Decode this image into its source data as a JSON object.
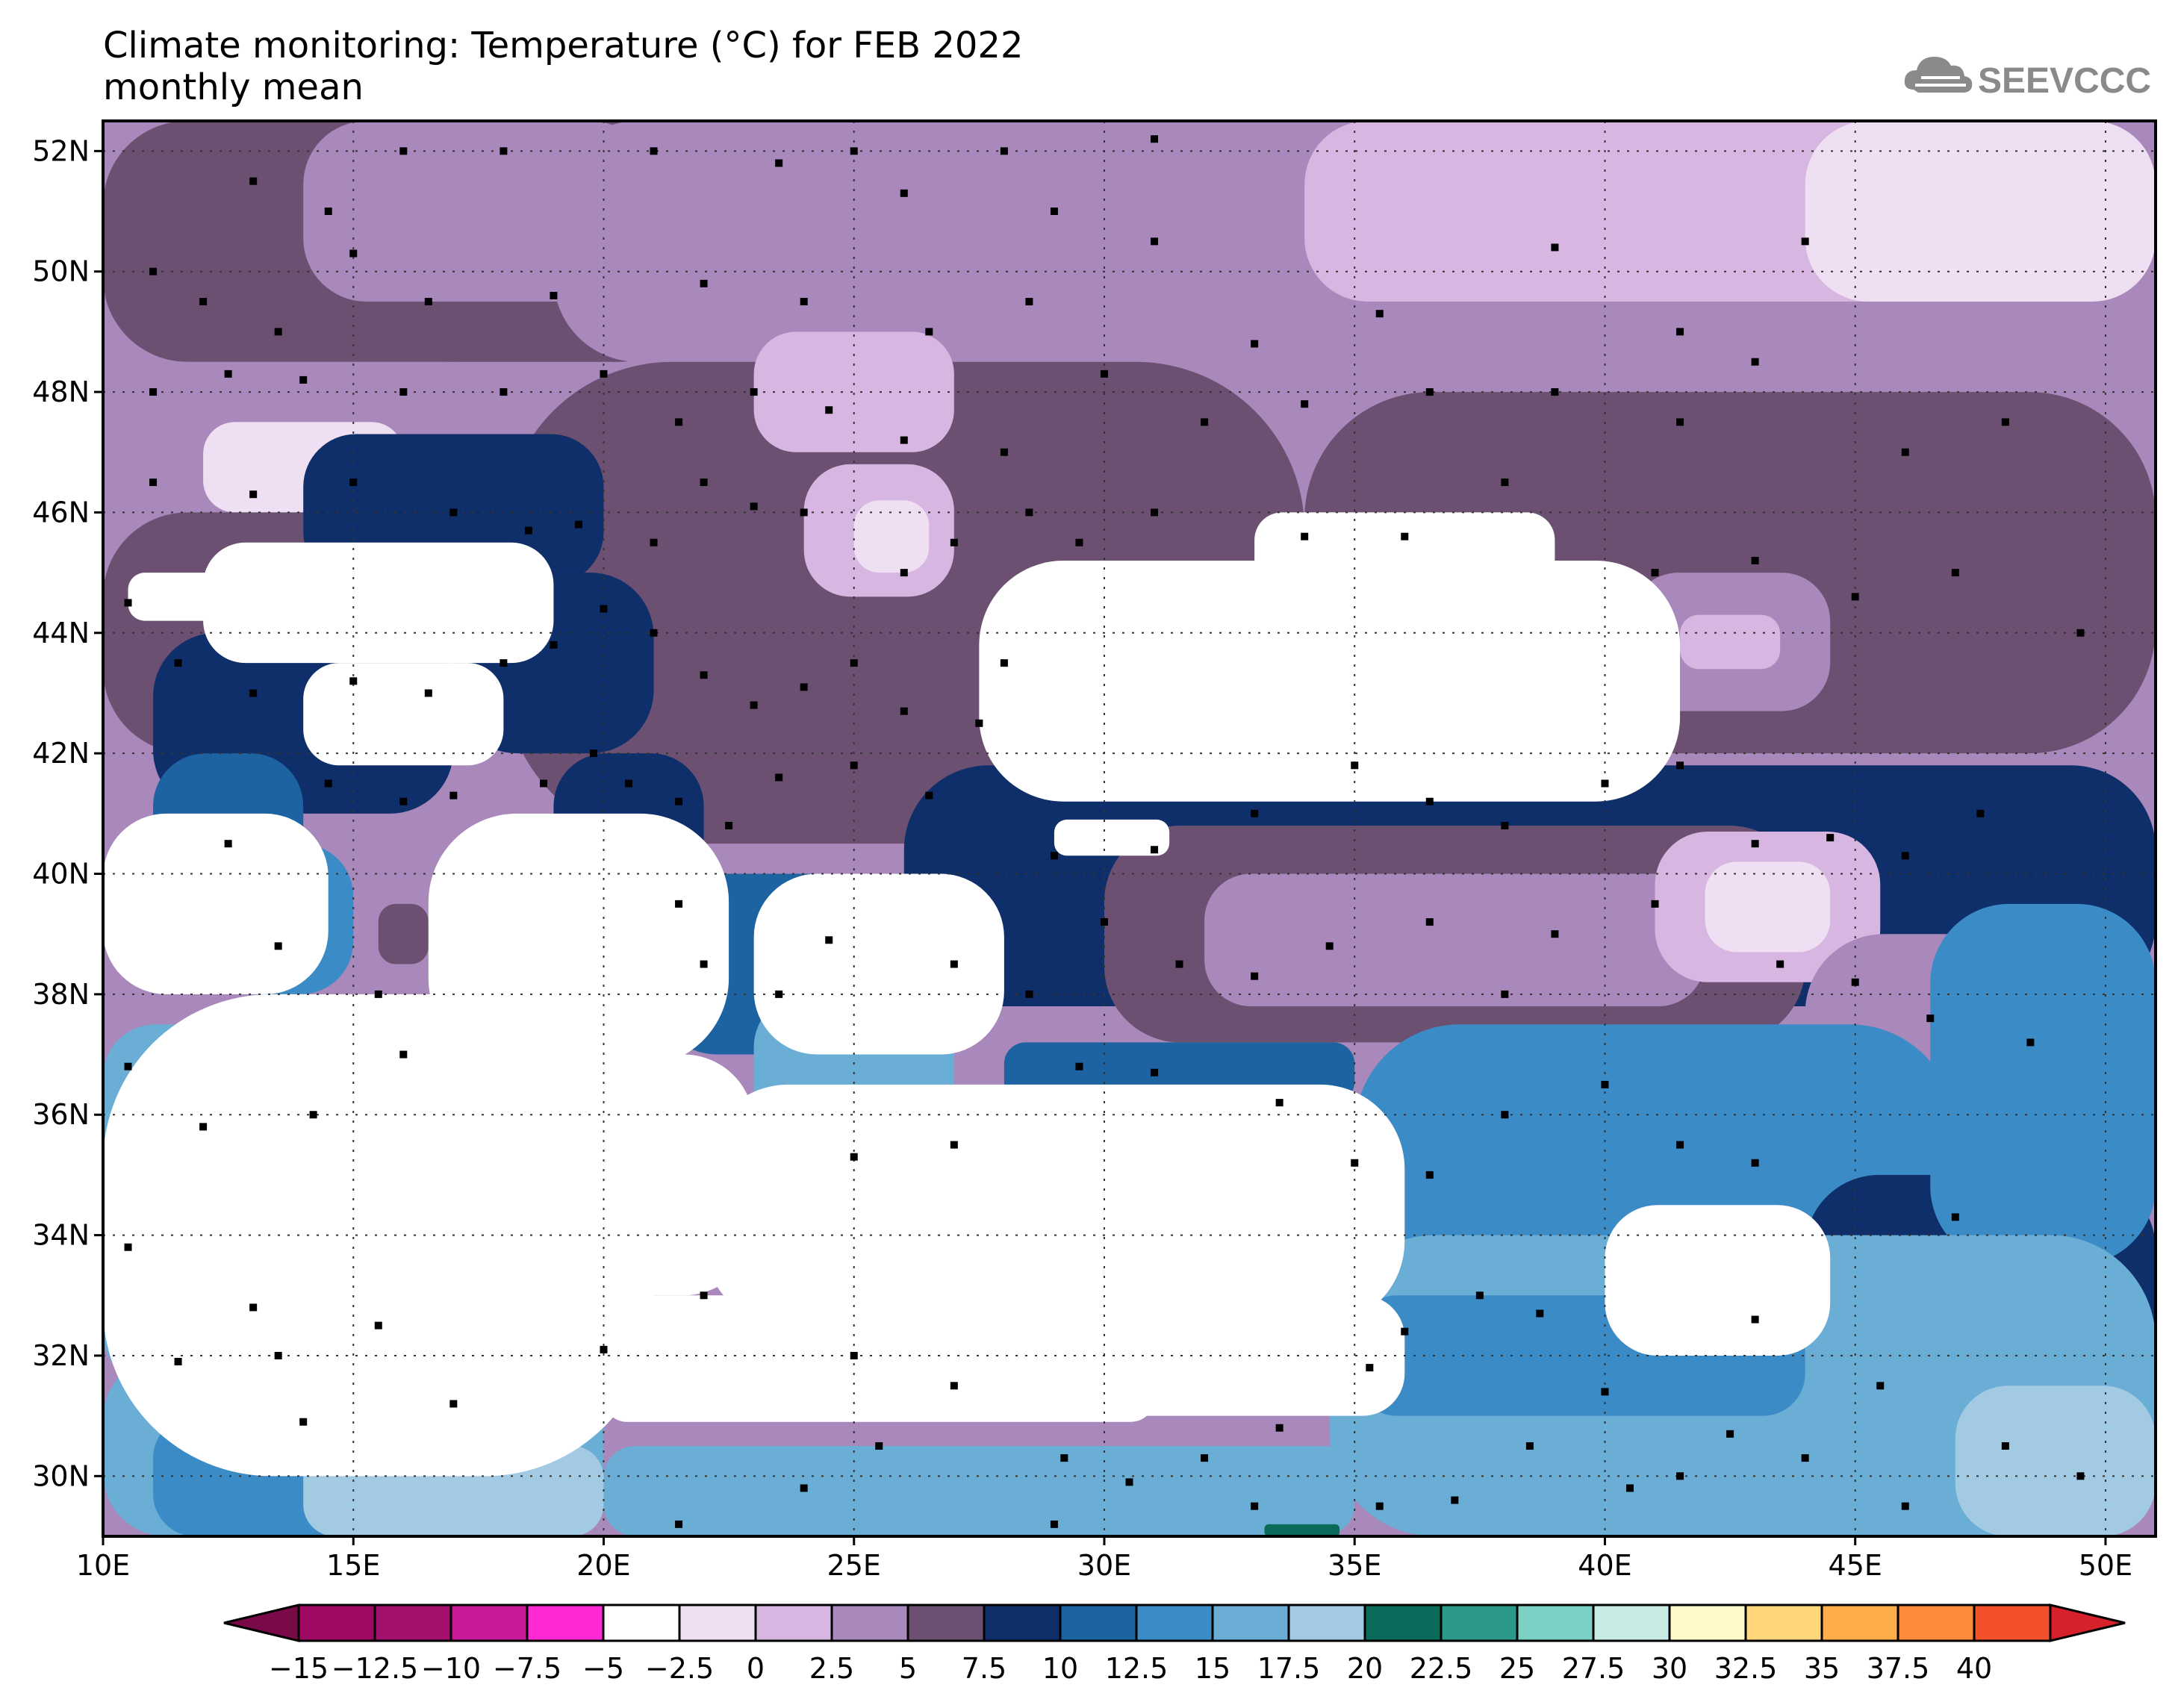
{
  "title": {
    "line1": "Climate monitoring: Temperature (°C) for FEB 2022",
    "line2": "monthly mean"
  },
  "logo": {
    "text": "SEEVCCC",
    "icon": "cloud-icon"
  },
  "map": {
    "lat_labels": [
      "52N",
      "50N",
      "48N",
      "46N",
      "44N",
      "42N",
      "40N",
      "38N",
      "36N",
      "34N",
      "32N",
      "30N"
    ],
    "lon_labels": [
      "10E",
      "15E",
      "20E",
      "25E",
      "30E",
      "35E",
      "40E",
      "45E",
      "50E"
    ],
    "lat_range": [
      29,
      52.5
    ],
    "lon_range": [
      10,
      51
    ],
    "grid": true
  },
  "colorbar": {
    "labels": [
      "−15",
      "−12.5",
      "−10",
      "−7.5",
      "−5",
      "−2.5",
      "0",
      "2.5",
      "5",
      "7.5",
      "10",
      "12.5",
      "15",
      "17.5",
      "20",
      "22.5",
      "25",
      "27.5",
      "30",
      "32.5",
      "35",
      "37.5",
      "40"
    ],
    "colors": [
      "#9e0a63",
      "#a3106d",
      "#c61a9a",
      "#ff2ad4",
      "#ffffff",
      "#efdff2",
      "#d8b6e2",
      "#a988bb",
      "#6b5072",
      "#0f2f6b",
      "#1d62a1",
      "#3b8cc6",
      "#6aaed6",
      "#a2cae3",
      "#0a6b5a",
      "#2c9a8a",
      "#7ad0c3",
      "#c6ece3",
      "#fffbc8",
      "#ffd67a",
      "#fdae4a",
      "#fb8a3a",
      "#f3502c"
    ],
    "under_color": "#7a0a47",
    "over_color": "#d6202a"
  },
  "land_blocks": [
    {
      "lon": 10,
      "lat": 52.5,
      "w": 12,
      "h": 4,
      "color": "#6b5072"
    },
    {
      "lon": 14,
      "lat": 52.5,
      "w": 7,
      "h": 3,
      "color": "#a988bb"
    },
    {
      "lon": 19,
      "lat": 52.5,
      "w": 18,
      "h": 4,
      "color": "#a988bb"
    },
    {
      "lon": 34,
      "lat": 52.5,
      "w": 17,
      "h": 3,
      "color": "#d8b6e2"
    },
    {
      "lon": 44,
      "lat": 52.5,
      "w": 7,
      "h": 3,
      "color": "#efdff2"
    },
    {
      "lon": 26,
      "lat": 49,
      "w": 25,
      "h": 2,
      "color": "#a988bb"
    },
    {
      "lon": 10,
      "lat": 48.5,
      "w": 8,
      "h": 3,
      "color": "#a988bb"
    },
    {
      "lon": 12,
      "lat": 47.5,
      "w": 4,
      "h": 1.5,
      "color": "#efdff2"
    },
    {
      "lon": 18,
      "lat": 48.5,
      "w": 16,
      "h": 8,
      "color": "#6b5072"
    },
    {
      "lon": 23,
      "lat": 49,
      "w": 4,
      "h": 2,
      "color": "#d8b6e2"
    },
    {
      "lon": 24,
      "lat": 46.8,
      "w": 3,
      "h": 2.2,
      "color": "#d8b6e2"
    },
    {
      "lon": 25,
      "lat": 46.2,
      "w": 1.5,
      "h": 1.2,
      "color": "#efdff2"
    },
    {
      "lon": 34,
      "lat": 48,
      "w": 17,
      "h": 6,
      "color": "#6b5072"
    },
    {
      "lon": 40.5,
      "lat": 45,
      "w": 4,
      "h": 2.3,
      "color": "#a988bb"
    },
    {
      "lon": 41.5,
      "lat": 44.3,
      "w": 2,
      "h": 0.9,
      "color": "#d8b6e2"
    },
    {
      "lon": 10,
      "lat": 46,
      "w": 8,
      "h": 4,
      "color": "#6b5072"
    },
    {
      "lon": 14,
      "lat": 47.3,
      "w": 6,
      "h": 2.5,
      "color": "#0f2f6b"
    },
    {
      "lon": 17,
      "lat": 45,
      "w": 4,
      "h": 3,
      "color": "#0f2f6b"
    },
    {
      "lon": 28,
      "lat": 44.5,
      "w": 3.5,
      "h": 4.5,
      "color": "#0f2f6b"
    },
    {
      "lon": 21,
      "lat": 44,
      "w": 7,
      "h": 3,
      "color": "#6b5072"
    },
    {
      "lon": 11,
      "lat": 44,
      "w": 6,
      "h": 3,
      "color": "#0f2f6b"
    },
    {
      "lon": 11,
      "lat": 42,
      "w": 3,
      "h": 3.5,
      "color": "#1d62a1"
    },
    {
      "lon": 12,
      "lat": 40.5,
      "w": 3,
      "h": 2.5,
      "color": "#3b8cc6"
    },
    {
      "lon": 15.5,
      "lat": 39.5,
      "w": 1,
      "h": 1,
      "color": "#6b5072"
    },
    {
      "lon": 19,
      "lat": 42,
      "w": 3,
      "h": 3,
      "color": "#0f2f6b"
    },
    {
      "lon": 21,
      "lat": 40,
      "w": 5,
      "h": 3,
      "color": "#1d62a1"
    },
    {
      "lon": 23,
      "lat": 38,
      "w": 4,
      "h": 2.5,
      "color": "#6aaed6"
    },
    {
      "lon": 26,
      "lat": 41.8,
      "w": 25,
      "h": 4,
      "color": "#0f2f6b"
    },
    {
      "lon": 30,
      "lat": 40.8,
      "w": 14,
      "h": 3.6,
      "color": "#6b5072"
    },
    {
      "lon": 32,
      "lat": 40,
      "w": 10,
      "h": 2.2,
      "color": "#a988bb"
    },
    {
      "lon": 41,
      "lat": 40.7,
      "w": 4.5,
      "h": 2.5,
      "color": "#d8b6e2"
    },
    {
      "lon": 42,
      "lat": 40.2,
      "w": 2.5,
      "h": 1.5,
      "color": "#efdff2"
    },
    {
      "lon": 44,
      "lat": 39,
      "w": 4.5,
      "h": 4,
      "color": "#a988bb"
    },
    {
      "lon": 28,
      "lat": 37.2,
      "w": 7,
      "h": 1,
      "color": "#1d62a1"
    },
    {
      "lon": 35,
      "lat": 37.5,
      "w": 12,
      "h": 5,
      "color": "#3b8cc6"
    },
    {
      "lon": 44,
      "lat": 35,
      "w": 7,
      "h": 3.5,
      "color": "#0f2f6b"
    },
    {
      "lon": 46.5,
      "lat": 39.5,
      "w": 4.5,
      "h": 6,
      "color": "#3b8cc6"
    },
    {
      "lon": 10,
      "lat": 37.5,
      "w": 3,
      "h": 6,
      "color": "#6aaed6"
    },
    {
      "lon": 10,
      "lat": 32,
      "w": 10,
      "h": 3,
      "color": "#6aaed6"
    },
    {
      "lon": 11,
      "lat": 31,
      "w": 4,
      "h": 2,
      "color": "#3b8cc6"
    },
    {
      "lon": 20,
      "lat": 30.5,
      "w": 15,
      "h": 1.5,
      "color": "#6aaed6"
    },
    {
      "lon": 34.5,
      "lat": 34,
      "w": 16.5,
      "h": 5,
      "color": "#6aaed6"
    },
    {
      "lon": 35,
      "lat": 33,
      "w": 9,
      "h": 2,
      "color": "#3b8cc6"
    },
    {
      "lon": 40,
      "lat": 34.5,
      "w": 4.5,
      "h": 2.5,
      "color": "#ffffff"
    },
    {
      "lon": 14,
      "lat": 30.5,
      "w": 6,
      "h": 1.5,
      "color": "#a2cae3"
    },
    {
      "lon": 47,
      "lat": 31.5,
      "w": 4,
      "h": 2.5,
      "color": "#a2cae3"
    },
    {
      "lon": 33.2,
      "lat": 29.2,
      "w": 1.5,
      "h": 0.3,
      "color": "#0a6b5a"
    }
  ],
  "sea_blocks": [
    {
      "lon": 27.5,
      "lat": 45.2,
      "w": 14,
      "h": 4,
      "color": "#ffffff"
    },
    {
      "lon": 33,
      "lat": 46,
      "w": 6,
      "h": 1.3,
      "color": "#ffffff"
    },
    {
      "lon": 10.5,
      "lat": 45,
      "w": 2,
      "h": 0.8,
      "color": "#ffffff"
    },
    {
      "lon": 12,
      "lat": 45.5,
      "w": 7,
      "h": 2,
      "color": "#ffffff"
    },
    {
      "lon": 14,
      "lat": 43.5,
      "w": 4,
      "h": 1.7,
      "color": "#ffffff"
    },
    {
      "lon": 10,
      "lat": 41,
      "w": 4.5,
      "h": 3,
      "color": "#ffffff"
    },
    {
      "lon": 16.5,
      "lat": 41,
      "w": 6,
      "h": 4.2,
      "color": "#ffffff"
    },
    {
      "lon": 10,
      "lat": 38,
      "w": 11,
      "h": 8,
      "color": "#ffffff"
    },
    {
      "lon": 19,
      "lat": 37,
      "w": 4,
      "h": 4,
      "color": "#ffffff"
    },
    {
      "lon": 23,
      "lat": 40,
      "w": 5,
      "h": 3,
      "color": "#ffffff"
    },
    {
      "lon": 22,
      "lat": 36.5,
      "w": 14,
      "h": 4,
      "color": "#ffffff"
    },
    {
      "lon": 18,
      "lat": 33,
      "w": 18,
      "h": 2,
      "color": "#ffffff"
    },
    {
      "lon": 15,
      "lat": 34,
      "w": 5,
      "h": 1.7,
      "color": "#ffffff"
    },
    {
      "lon": 20,
      "lat": 32,
      "w": 11,
      "h": 1.1,
      "color": "#ffffff"
    },
    {
      "lon": 29,
      "lat": 40.9,
      "w": 2.3,
      "h": 0.6,
      "color": "#ffffff"
    }
  ],
  "stations": [
    [
      12.5,
      52.5
    ],
    [
      13,
      51.5
    ],
    [
      14.5,
      51
    ],
    [
      16,
      52
    ],
    [
      18,
      52
    ],
    [
      21,
      52
    ],
    [
      23.5,
      51.8
    ],
    [
      25,
      52
    ],
    [
      26,
      51.3
    ],
    [
      28,
      52
    ],
    [
      29,
      51
    ],
    [
      31,
      52.2
    ],
    [
      11,
      50
    ],
    [
      12,
      49.5
    ],
    [
      13.5,
      49
    ],
    [
      15,
      50.3
    ],
    [
      16.5,
      49.5
    ],
    [
      19,
      49.6
    ],
    [
      22,
      49.8
    ],
    [
      24,
      49.5
    ],
    [
      26.5,
      49
    ],
    [
      28.5,
      49.5
    ],
    [
      31,
      50.5
    ],
    [
      33,
      48.8
    ],
    [
      35.5,
      49.3
    ],
    [
      39,
      50.4
    ],
    [
      41.5,
      49
    ],
    [
      44,
      50.5
    ],
    [
      11,
      48
    ],
    [
      12.5,
      48.3
    ],
    [
      14,
      48.2
    ],
    [
      16,
      48
    ],
    [
      18,
      48
    ],
    [
      20,
      48.3
    ],
    [
      21.5,
      47.5
    ],
    [
      23,
      48
    ],
    [
      24.5,
      47.7
    ],
    [
      26,
      47.2
    ],
    [
      28,
      47
    ],
    [
      30,
      48.3
    ],
    [
      32,
      47.5
    ],
    [
      34,
      47.8
    ],
    [
      36.5,
      48
    ],
    [
      39,
      48
    ],
    [
      41.5,
      47.5
    ],
    [
      43,
      48.5
    ],
    [
      46,
      47
    ],
    [
      48,
      47.5
    ],
    [
      11,
      46.5
    ],
    [
      13,
      46.3
    ],
    [
      15,
      46.5
    ],
    [
      17,
      46
    ],
    [
      18.5,
      45.7
    ],
    [
      19.5,
      45.8
    ],
    [
      21,
      45.5
    ],
    [
      22,
      46.5
    ],
    [
      23,
      46.1
    ],
    [
      24,
      46
    ],
    [
      26,
      45
    ],
    [
      27,
      45.5
    ],
    [
      28.5,
      46
    ],
    [
      29.5,
      45.5
    ],
    [
      31,
      46
    ],
    [
      34,
      45.6
    ],
    [
      36,
      45.6
    ],
    [
      38,
      46.5
    ],
    [
      41,
      45
    ],
    [
      43,
      45.2
    ],
    [
      45,
      44.6
    ],
    [
      47,
      45
    ],
    [
      49.5,
      44
    ],
    [
      10.5,
      44.5
    ],
    [
      11.5,
      43.5
    ],
    [
      13,
      43
    ],
    [
      15,
      43.2
    ],
    [
      16.5,
      43
    ],
    [
      18,
      43.5
    ],
    [
      19,
      43.8
    ],
    [
      20,
      44.4
    ],
    [
      21,
      44
    ],
    [
      22,
      43.3
    ],
    [
      23,
      42.8
    ],
    [
      24,
      43.1
    ],
    [
      25,
      43.5
    ],
    [
      26,
      42.7
    ],
    [
      27.5,
      42.5
    ],
    [
      28,
      43.5
    ],
    [
      14.5,
      41.5
    ],
    [
      16,
      41.2
    ],
    [
      17,
      41.3
    ],
    [
      18.8,
      41.5
    ],
    [
      19.8,
      42
    ],
    [
      20.5,
      41.5
    ],
    [
      21.5,
      41.2
    ],
    [
      22.5,
      40.8
    ],
    [
      23.5,
      41.6
    ],
    [
      25,
      41.8
    ],
    [
      26.5,
      41.3
    ],
    [
      29,
      40.3
    ],
    [
      31,
      40.4
    ],
    [
      33,
      41
    ],
    [
      35,
      41.8
    ],
    [
      36.5,
      41.2
    ],
    [
      38,
      40.8
    ],
    [
      40,
      41.5
    ],
    [
      41.5,
      41.8
    ],
    [
      43,
      40.5
    ],
    [
      44.5,
      40.6
    ],
    [
      46,
      40.3
    ],
    [
      47.5,
      41
    ],
    [
      12.5,
      40.5
    ],
    [
      13.5,
      38.8
    ],
    [
      15.5,
      38
    ],
    [
      16,
      37
    ],
    [
      21.5,
      39.5
    ],
    [
      22,
      38.5
    ],
    [
      23.5,
      38
    ],
    [
      24.5,
      38.9
    ],
    [
      27,
      38.5
    ],
    [
      28.5,
      38
    ],
    [
      30,
      39.2
    ],
    [
      31.5,
      38.5
    ],
    [
      33,
      38.3
    ],
    [
      34.5,
      38.8
    ],
    [
      36.5,
      39.2
    ],
    [
      38,
      38
    ],
    [
      39,
      39
    ],
    [
      41,
      39.5
    ],
    [
      43.5,
      38.5
    ],
    [
      45,
      38.2
    ],
    [
      46.5,
      37.6
    ],
    [
      48.5,
      37.2
    ],
    [
      10.5,
      36.8
    ],
    [
      12,
      35.8
    ],
    [
      14.2,
      36
    ],
    [
      25,
      35.3
    ],
    [
      27,
      35.5
    ],
    [
      29.5,
      36.8
    ],
    [
      31,
      36.7
    ],
    [
      33.5,
      36.2
    ],
    [
      35,
      35.2
    ],
    [
      36.5,
      35
    ],
    [
      38,
      36
    ],
    [
      40,
      36.5
    ],
    [
      41.5,
      35.5
    ],
    [
      43,
      35.2
    ],
    [
      47,
      34.3
    ],
    [
      10.5,
      33.8
    ],
    [
      13,
      32.8
    ],
    [
      11.5,
      31.9
    ],
    [
      13.5,
      32
    ],
    [
      15.5,
      32.5
    ],
    [
      14,
      30.9
    ],
    [
      17,
      31.2
    ],
    [
      20,
      32.1
    ],
    [
      22,
      33
    ],
    [
      25,
      32
    ],
    [
      27,
      31.5
    ],
    [
      29.2,
      30.3
    ],
    [
      30.5,
      29.9
    ],
    [
      32,
      30.3
    ],
    [
      33.5,
      30.8
    ],
    [
      35.3,
      31.8
    ],
    [
      36,
      32.4
    ],
    [
      37.5,
      33
    ],
    [
      38.7,
      32.7
    ],
    [
      40,
      31.4
    ],
    [
      41.5,
      30
    ],
    [
      43,
      32.6
    ],
    [
      44,
      30.3
    ],
    [
      45.5,
      31.5
    ],
    [
      46,
      29.5
    ],
    [
      48,
      30.5
    ],
    [
      49.5,
      30
    ],
    [
      21.5,
      29.2
    ],
    [
      24,
      29.8
    ],
    [
      25.5,
      30.5
    ],
    [
      29,
      29.2
    ],
    [
      33,
      29.5
    ],
    [
      35.5,
      29.5
    ],
    [
      37,
      29.6
    ],
    [
      38.5,
      30.5
    ],
    [
      40.5,
      29.8
    ],
    [
      42.5,
      30.7
    ]
  ]
}
